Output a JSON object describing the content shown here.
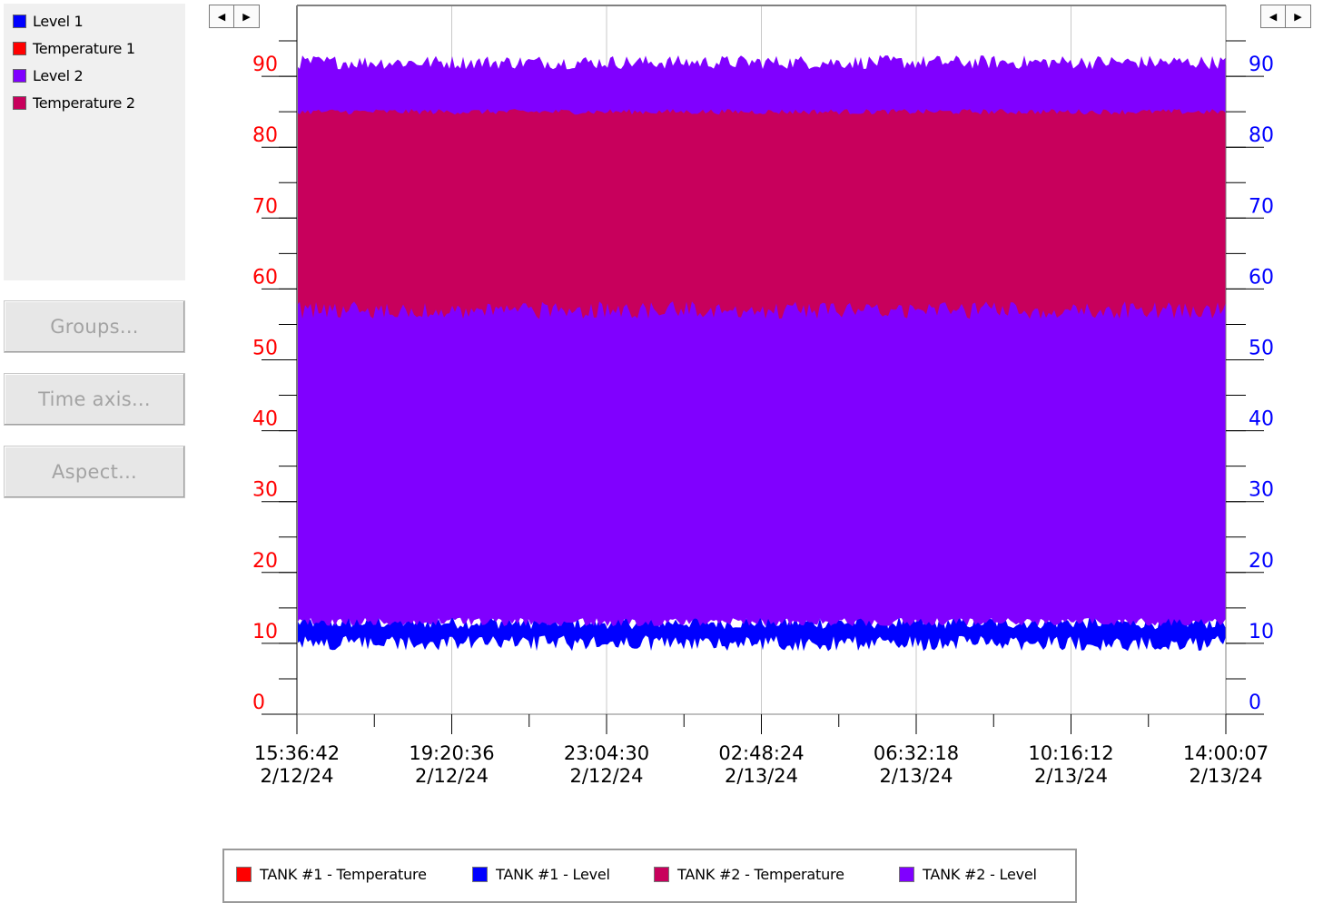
{
  "legend_panel": {
    "items": [
      {
        "label": "Level 1",
        "color": "#0000ff"
      },
      {
        "label": "Temperature 1",
        "color": "#ff0000"
      },
      {
        "label": "Level 2",
        "color": "#8000ff"
      },
      {
        "label": "Temperature 2",
        "color": "#c8005c"
      }
    ]
  },
  "buttons": {
    "groups": "Groups...",
    "time_axis": "Time axis...",
    "aspect": "Aspect..."
  },
  "icons": {
    "left_scroll": "◀",
    "right_scroll": "▶"
  },
  "chart_data": {
    "type": "area",
    "y_left": {
      "ticks": [
        "0",
        "10",
        "20",
        "30",
        "40",
        "50",
        "60",
        "70",
        "80",
        "90"
      ],
      "color": "#ff0000",
      "range": [
        0,
        100
      ]
    },
    "y_right": {
      "ticks": [
        "0",
        "10",
        "20",
        "30",
        "40",
        "50",
        "60",
        "70",
        "80",
        "90"
      ],
      "color": "#0000ff",
      "range": [
        0,
        100
      ]
    },
    "x_ticks": [
      {
        "time": "15:36:42",
        "date": "2/12/24"
      },
      {
        "time": "19:20:36",
        "date": "2/12/24"
      },
      {
        "time": "23:04:30",
        "date": "2/12/24"
      },
      {
        "time": "02:48:24",
        "date": "2/13/24"
      },
      {
        "time": "06:32:18",
        "date": "2/13/24"
      },
      {
        "time": "10:16:12",
        "date": "2/13/24"
      },
      {
        "time": "14:00:07",
        "date": "2/13/24"
      }
    ],
    "grid": true,
    "series": [
      {
        "name": "TANK #2 - Level",
        "color": "#8000ff",
        "low": 13,
        "high": 92
      },
      {
        "name": "TANK #2 - Temperature",
        "color": "#c8005c",
        "low": 57,
        "high": 85
      },
      {
        "name": "TANK #1 - Level",
        "color": "#0000ff",
        "low": 10,
        "high": 13
      }
    ]
  },
  "bottom_legend": [
    {
      "label": "TANK #1 - Temperature",
      "color": "#ff0000"
    },
    {
      "label": "TANK #1 - Level",
      "color": "#0000ff"
    },
    {
      "label": "TANK #2 - Temperature",
      "color": "#c8005c"
    },
    {
      "label": "TANK #2 - Level",
      "color": "#8000ff"
    }
  ]
}
